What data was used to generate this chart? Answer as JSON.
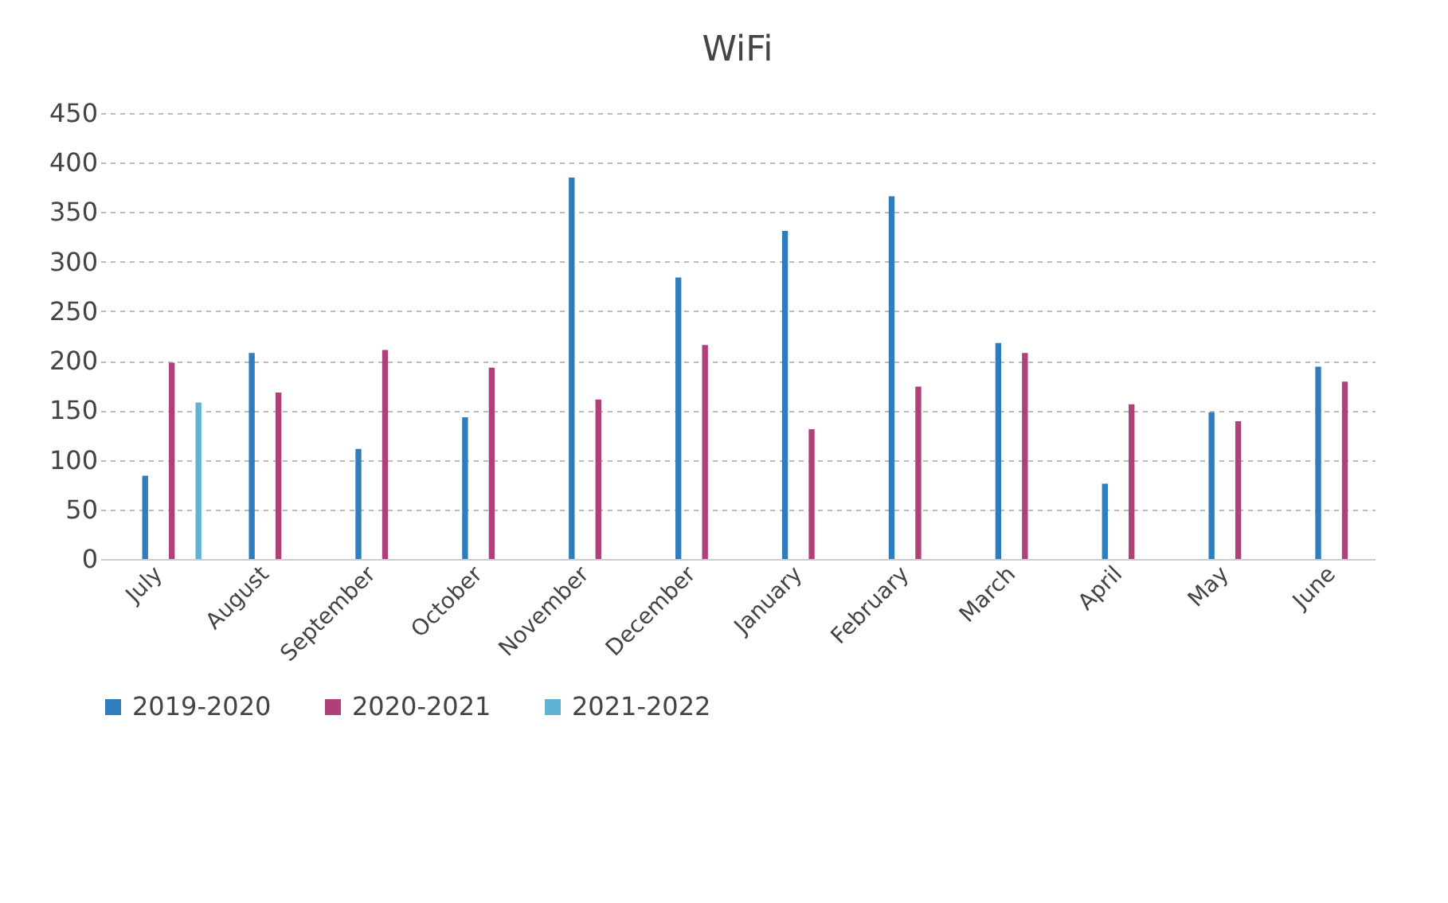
{
  "chart_data": {
    "type": "bar",
    "title": "WiFi",
    "categories": [
      "July",
      "August",
      "September",
      "October",
      "November",
      "December",
      "January",
      "February",
      "March",
      "April",
      "May",
      "June"
    ],
    "series": [
      {
        "name": "2019-2020",
        "color": "#2f7dbd",
        "values": [
          84,
          208,
          111,
          143,
          385,
          284,
          331,
          366,
          218,
          76,
          148,
          194
        ]
      },
      {
        "name": "2020-2021",
        "color": "#b0407a",
        "values": [
          198,
          168,
          211,
          193,
          161,
          216,
          131,
          174,
          208,
          156,
          139,
          179
        ]
      },
      {
        "name": "2021-2022",
        "color": "#5fb3d3",
        "values": [
          158,
          null,
          null,
          null,
          null,
          null,
          null,
          null,
          null,
          null,
          null,
          null
        ]
      }
    ],
    "ylim": [
      0,
      450
    ],
    "yticks": [
      0,
      50,
      100,
      150,
      200,
      250,
      300,
      350,
      400,
      450
    ],
    "grid": "y",
    "legend": "bottom"
  }
}
